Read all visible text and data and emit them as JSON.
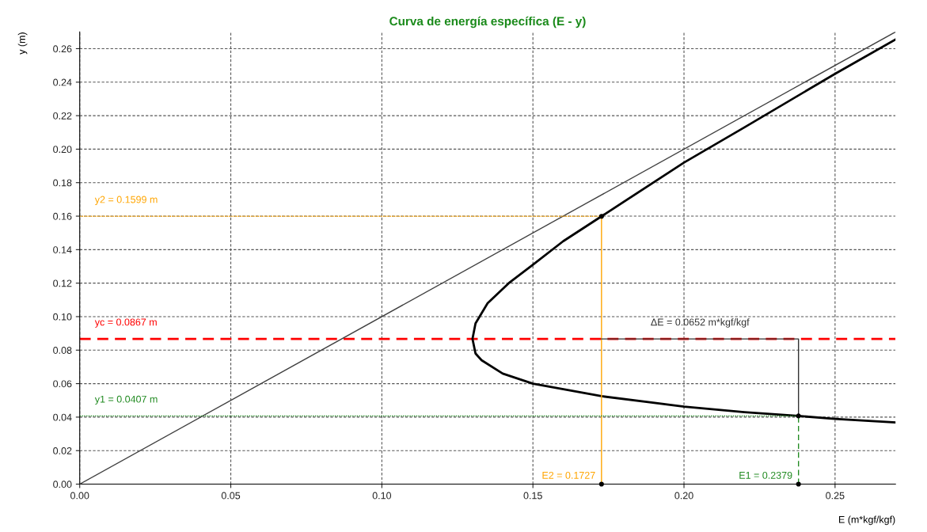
{
  "chart_data": {
    "type": "line",
    "title": "Curva de energía específica (E - y)",
    "xlabel": "E (m*kgf/kgf)",
    "ylabel": "y (m)",
    "xlim": [
      0,
      0.27
    ],
    "ylim": [
      0,
      0.27
    ],
    "xticks": [
      {
        "value": 0,
        "label": "0.00"
      },
      0.05,
      {
        "value": 0.1,
        "label": "0.10"
      },
      0.15,
      {
        "value": 0.2,
        "label": "0.20"
      },
      0.25
    ],
    "yticks": [
      {
        "value": 0,
        "label": "0.00"
      },
      0.02,
      0.04,
      0.06,
      0.08,
      {
        "value": 0.1,
        "label": "0.10"
      },
      0.12,
      0.14,
      0.16,
      0.18,
      {
        "value": 0.2,
        "label": "0.20"
      },
      0.22,
      0.24,
      0.26
    ],
    "grid": true,
    "ref_lines": [
      {
        "axis": "y",
        "value": 0.0867,
        "label": "yc = 0.0867 m",
        "color": "#ff0000",
        "line_style": "dashed"
      }
    ],
    "series": [
      {
        "color": "#000000",
        "line_style": "solid",
        "x": [
          0.27,
          0.25,
          0.2379,
          0.22,
          0.2,
          0.1727,
          0.15,
          0.14,
          0.133,
          0.131,
          0.13,
          0.131,
          0.135,
          0.142,
          0.15,
          0.16,
          0.1727,
          0.2,
          0.22,
          0.25,
          0.27
        ],
        "values": [
          0.0368,
          0.039,
          0.0407,
          0.043,
          0.0463,
          0.0525,
          0.06,
          0.066,
          0.074,
          0.078,
          0.0867,
          0.096,
          0.108,
          0.12,
          0.131,
          0.145,
          0.1599,
          0.192,
          0.213,
          0.245,
          0.2655
        ]
      },
      {
        "color": "#404040",
        "line_style": "solid",
        "x": [
          0,
          0.27
        ],
        "values": [
          0,
          0.27
        ]
      },
      {
        "type": "line",
        "name": "y2 = 0.1599 m",
        "color": "#ffa500",
        "line_style": "dotted",
        "x": [
          0,
          0.1727
        ],
        "values": [
          0.1599,
          0.1599
        ]
      },
      {
        "type": "line",
        "name": "E2 = 0.1727",
        "color": "#ffa500",
        "line_style": "solid",
        "x": [
          0.1727,
          0.1727
        ],
        "values": [
          0,
          0.1599
        ]
      },
      {
        "type": "line",
        "name": "y1 = 0.0407 m",
        "color": "#228b22",
        "line_style": "dotted",
        "x": [
          0,
          0.2379
        ],
        "values": [
          0.0407,
          0.0407
        ]
      },
      {
        "type": "line",
        "name": "E1 = 0.2379",
        "color": "#228b22",
        "line_style": "dashed",
        "x": [
          0.2379,
          0.2379
        ],
        "values": [
          0,
          0.0407
        ]
      },
      {
        "type": "line",
        "name": "ΔE = 0.0652 m*kgf/kgf",
        "color": "#333333",
        "line_style": "solid",
        "x": [
          0.1727,
          0.2379,
          0.2379
        ],
        "values": [
          0.0867,
          0.0867,
          0.0407
        ]
      },
      {
        "type": "scatter",
        "color": "#000000",
        "marker": "circle",
        "x": [
          0.1727,
          0.2379,
          0.1727,
          0.2379
        ],
        "values": [
          0.1599,
          0.0407,
          0,
          0
        ]
      }
    ]
  }
}
